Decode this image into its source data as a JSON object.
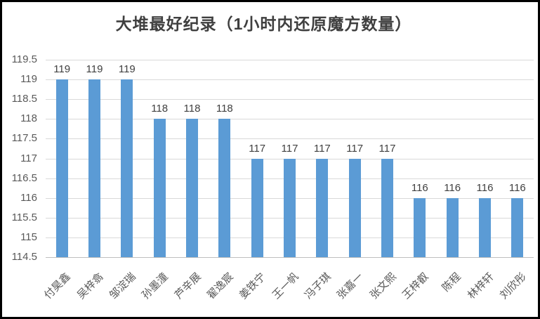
{
  "chart_data": {
    "type": "bar",
    "title": "大堆最好纪录（1小时内还原魔方数量）",
    "categories": [
      "付昊鑫",
      "吴梓翕",
      "邹淀瑞",
      "孙墨潼",
      "芦辛展",
      "翟逸宸",
      "姜铁宁",
      "王一帆",
      "冯子琪",
      "张嘉一",
      "张文熙",
      "王梓叡",
      "陈程",
      "林梓轩",
      "刘欣彤"
    ],
    "values": [
      119,
      119,
      119,
      118,
      118,
      118,
      117,
      117,
      117,
      117,
      117,
      116,
      116,
      116,
      116
    ],
    "data_labels": [
      "119",
      "119",
      "119",
      "118",
      "118",
      "118",
      "117",
      "117",
      "117",
      "117",
      "117",
      "116",
      "116",
      "116",
      "116"
    ],
    "xlabel": "",
    "ylabel": "",
    "ylim": [
      114.5,
      119.5
    ],
    "ytick_step": 0.5,
    "yticks": [
      "119.5",
      "119",
      "118.5",
      "118",
      "117.5",
      "117",
      "116.5",
      "116",
      "115.5",
      "115",
      "114.5"
    ],
    "grid": true,
    "legend": "none",
    "colors": {
      "bar": "#5b9bd5",
      "gridline": "#d9d9d9",
      "axis_line": "#bfbfbf",
      "tick_label": "#595959",
      "data_label": "#404040",
      "title": "#3f3f3f",
      "frame_border": "#000000",
      "background": "#ffffff"
    }
  }
}
